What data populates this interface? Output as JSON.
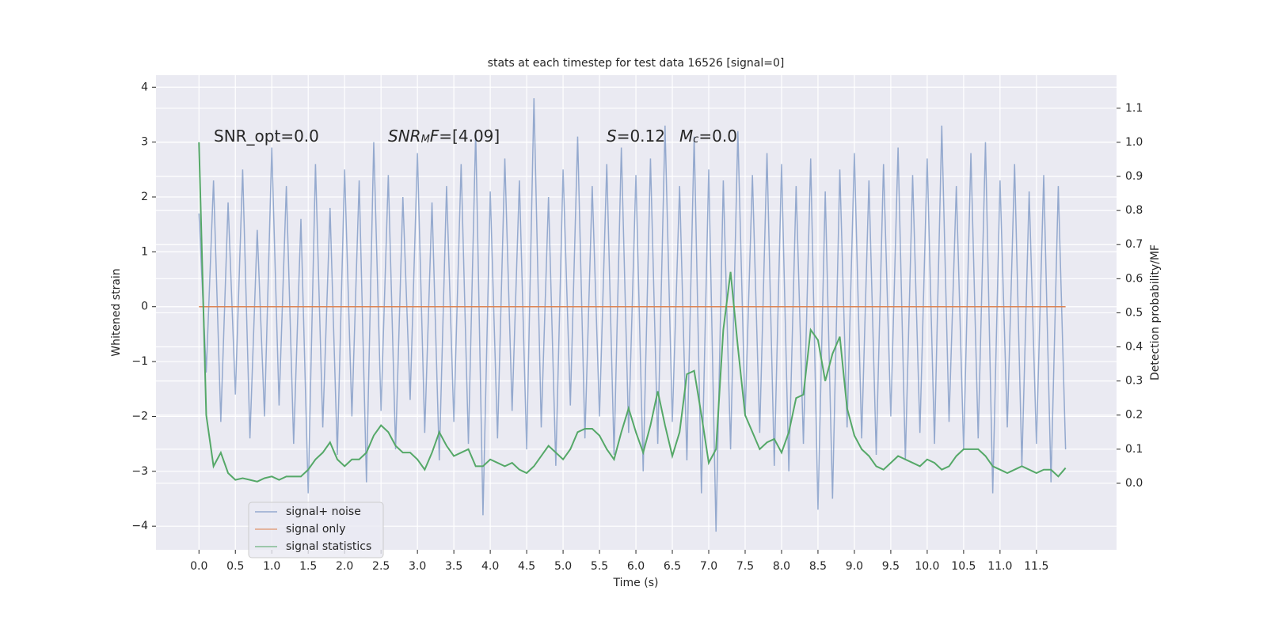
{
  "chart_data": {
    "type": "line",
    "title": "stats at each timestep for test data 16526 [signal=0]",
    "xlabel": "Time (s)",
    "ylabel": "Whitened strain",
    "y2label": "Detection probability/MF",
    "annotations": [
      [
        {
          "text": "SNR_opt=0.0",
          "style": "normal"
        }
      ],
      [
        {
          "text": "SNR",
          "style": "italic"
        },
        {
          "text": "M",
          "style": "italic-sub"
        },
        {
          "text": "F",
          "style": "italic"
        },
        {
          "text": "=[4.09]",
          "style": "normal"
        }
      ],
      [
        {
          "text": "S",
          "style": "italic"
        },
        {
          "text": "=0.12",
          "style": "normal"
        }
      ],
      [
        {
          "text": "M",
          "style": "italic"
        },
        {
          "text": "c",
          "style": "italic-sub"
        },
        {
          "text": "=0.0",
          "style": "normal"
        }
      ]
    ],
    "x": [
      0.0,
      0.1,
      0.2,
      0.3,
      0.4,
      0.5,
      0.6,
      0.7,
      0.8,
      0.9,
      1.0,
      1.1,
      1.2,
      1.3,
      1.4,
      1.5,
      1.6,
      1.7,
      1.8,
      1.9,
      2.0,
      2.1,
      2.2,
      2.3,
      2.4,
      2.5,
      2.6,
      2.7,
      2.8,
      2.9,
      3.0,
      3.1,
      3.2,
      3.3,
      3.4,
      3.5,
      3.6,
      3.7,
      3.8,
      3.9,
      4.0,
      4.1,
      4.2,
      4.3,
      4.4,
      4.5,
      4.6,
      4.7,
      4.8,
      4.9,
      5.0,
      5.1,
      5.2,
      5.3,
      5.4,
      5.5,
      5.6,
      5.7,
      5.8,
      5.9,
      6.0,
      6.1,
      6.2,
      6.3,
      6.4,
      6.5,
      6.6,
      6.7,
      6.8,
      6.9,
      7.0,
      7.1,
      7.2,
      7.3,
      7.4,
      7.5,
      7.6,
      7.7,
      7.8,
      7.9,
      8.0,
      8.1,
      8.2,
      8.3,
      8.4,
      8.5,
      8.6,
      8.7,
      8.8,
      8.9,
      9.0,
      9.1,
      9.2,
      9.3,
      9.4,
      9.5,
      9.6,
      9.7,
      9.8,
      9.9,
      10.0,
      10.1,
      10.2,
      10.3,
      10.4,
      10.5,
      10.6,
      10.7,
      10.8,
      10.9,
      11.0,
      11.1,
      11.2,
      11.3,
      11.4,
      11.5,
      11.6,
      11.7,
      11.8,
      11.9
    ],
    "series": [
      {
        "name": "signal+ noise",
        "color": "#4c72b0",
        "axis": "y",
        "values": [
          1.7,
          -1.2,
          2.3,
          -2.1,
          1.9,
          -1.6,
          2.5,
          -2.4,
          1.4,
          -2.0,
          2.9,
          -1.8,
          2.2,
          -2.5,
          1.6,
          -3.4,
          2.6,
          -2.2,
          1.8,
          -2.7,
          2.5,
          -2.0,
          2.3,
          -3.2,
          3.0,
          -1.9,
          2.4,
          -2.6,
          2.0,
          -1.7,
          2.8,
          -2.3,
          1.9,
          -2.8,
          2.2,
          -2.1,
          2.6,
          -2.5,
          3.2,
          -3.8,
          2.1,
          -2.4,
          2.7,
          -1.9,
          2.3,
          -2.6,
          3.8,
          -2.2,
          2.0,
          -2.9,
          2.5,
          -1.8,
          3.1,
          -2.4,
          2.2,
          -2.0,
          2.6,
          -2.7,
          2.9,
          -2.3,
          2.4,
          -3.0,
          2.7,
          -2.5,
          3.3,
          -2.1,
          2.2,
          -2.8,
          3.1,
          -3.4,
          2.5,
          -4.1,
          2.3,
          -2.6,
          3.2,
          -2.0,
          2.4,
          -2.3,
          2.8,
          -2.9,
          2.6,
          -3.0,
          2.2,
          -2.5,
          2.7,
          -3.7,
          2.1,
          -3.5,
          2.5,
          -2.2,
          2.8,
          -2.4,
          2.3,
          -2.7,
          2.6,
          -2.0,
          2.9,
          -2.8,
          2.4,
          -2.3,
          2.7,
          -2.5,
          3.3,
          -2.1,
          2.2,
          -2.6,
          2.8,
          -2.4,
          3.0,
          -3.4,
          2.3,
          -2.2,
          2.6,
          -2.9,
          2.1,
          -2.5,
          2.4,
          -3.2,
          2.2,
          -2.6
        ]
      },
      {
        "name": "signal only",
        "color": "#dd8452",
        "axis": "y",
        "values": [
          0,
          0,
          0,
          0,
          0,
          0,
          0,
          0,
          0,
          0,
          0,
          0,
          0,
          0,
          0,
          0,
          0,
          0,
          0,
          0,
          0,
          0,
          0,
          0,
          0,
          0,
          0,
          0,
          0,
          0,
          0,
          0,
          0,
          0,
          0,
          0,
          0,
          0,
          0,
          0,
          0,
          0,
          0,
          0,
          0,
          0,
          0,
          0,
          0,
          0,
          0,
          0,
          0,
          0,
          0,
          0,
          0,
          0,
          0,
          0,
          0,
          0,
          0,
          0,
          0,
          0,
          0,
          0,
          0,
          0,
          0,
          0,
          0,
          0,
          0,
          0,
          0,
          0,
          0,
          0,
          0,
          0,
          0,
          0,
          0,
          0,
          0,
          0,
          0,
          0,
          0,
          0,
          0,
          0,
          0,
          0,
          0,
          0,
          0,
          0,
          0,
          0,
          0,
          0,
          0,
          0,
          0,
          0,
          0,
          0,
          0,
          0,
          0,
          0,
          0,
          0,
          0,
          0,
          0,
          0
        ]
      },
      {
        "name": "signal statistics",
        "color": "#55a868",
        "axis": "y2",
        "values": [
          1.0,
          0.2,
          0.05,
          0.09,
          0.03,
          0.01,
          0.015,
          0.01,
          0.005,
          0.015,
          0.02,
          0.01,
          0.02,
          0.02,
          0.02,
          0.04,
          0.07,
          0.09,
          0.12,
          0.07,
          0.05,
          0.07,
          0.07,
          0.09,
          0.14,
          0.17,
          0.15,
          0.11,
          0.09,
          0.09,
          0.07,
          0.04,
          0.09,
          0.15,
          0.11,
          0.08,
          0.09,
          0.1,
          0.05,
          0.05,
          0.07,
          0.06,
          0.05,
          0.06,
          0.04,
          0.03,
          0.05,
          0.08,
          0.11,
          0.09,
          0.07,
          0.1,
          0.15,
          0.16,
          0.16,
          0.14,
          0.1,
          0.07,
          0.15,
          0.22,
          0.15,
          0.09,
          0.17,
          0.27,
          0.17,
          0.08,
          0.15,
          0.32,
          0.33,
          0.2,
          0.06,
          0.1,
          0.45,
          0.62,
          0.4,
          0.2,
          0.15,
          0.1,
          0.12,
          0.13,
          0.09,
          0.15,
          0.25,
          0.26,
          0.45,
          0.42,
          0.3,
          0.38,
          0.43,
          0.22,
          0.14,
          0.1,
          0.08,
          0.05,
          0.04,
          0.06,
          0.08,
          0.07,
          0.06,
          0.05,
          0.07,
          0.06,
          0.04,
          0.05,
          0.08,
          0.1,
          0.1,
          0.1,
          0.08,
          0.05,
          0.04,
          0.03,
          0.04,
          0.05,
          0.04,
          0.03,
          0.04,
          0.04,
          0.02,
          0.045
        ]
      }
    ],
    "xlim": [
      -0.59,
      12.6
    ],
    "ylim": [
      -4.43,
      4.22
    ],
    "y2lim": [
      -0.195,
      1.197
    ],
    "xticks": [
      {
        "value": 0,
        "label": "0.0"
      },
      {
        "value": 0.5,
        "label": "0.5"
      },
      {
        "value": 1,
        "label": "1.0"
      },
      {
        "value": 1.5,
        "label": "1.5"
      },
      {
        "value": 2,
        "label": "2.0"
      },
      {
        "value": 2.5,
        "label": "2.5"
      },
      {
        "value": 3,
        "label": "3.0"
      },
      {
        "value": 3.5,
        "label": "3.5"
      },
      {
        "value": 4,
        "label": "4.0"
      },
      {
        "value": 4.5,
        "label": "4.5"
      },
      {
        "value": 5,
        "label": "5.0"
      },
      {
        "value": 5.5,
        "label": "5.5"
      },
      {
        "value": 6,
        "label": "6.0"
      },
      {
        "value": 6.5,
        "label": "6.5"
      },
      {
        "value": 7,
        "label": "7.0"
      },
      {
        "value": 7.5,
        "label": "7.5"
      },
      {
        "value": 8,
        "label": "8.0"
      },
      {
        "value": 8.5,
        "label": "8.5"
      },
      {
        "value": 9,
        "label": "9.0"
      },
      {
        "value": 9.5,
        "label": "9.5"
      },
      {
        "value": 10,
        "label": "10.0"
      },
      {
        "value": 10.5,
        "label": "10.5"
      },
      {
        "value": 11,
        "label": "11.0"
      },
      {
        "value": 11.5,
        "label": "11.5"
      }
    ],
    "yticks": [
      {
        "value": -4,
        "label": "−4"
      },
      {
        "value": -3,
        "label": "−3"
      },
      {
        "value": -2,
        "label": "−2"
      },
      {
        "value": -1,
        "label": "−1"
      },
      0,
      1,
      2,
      3,
      4
    ],
    "y2ticks": [
      {
        "value": 0,
        "label": "0.0"
      },
      0.1,
      0.2,
      0.3,
      0.4,
      0.5,
      0.6,
      0.7,
      0.8,
      0.9,
      {
        "value": 1,
        "label": "1.0"
      },
      1.1
    ],
    "grid": true,
    "legend": "lower left"
  }
}
